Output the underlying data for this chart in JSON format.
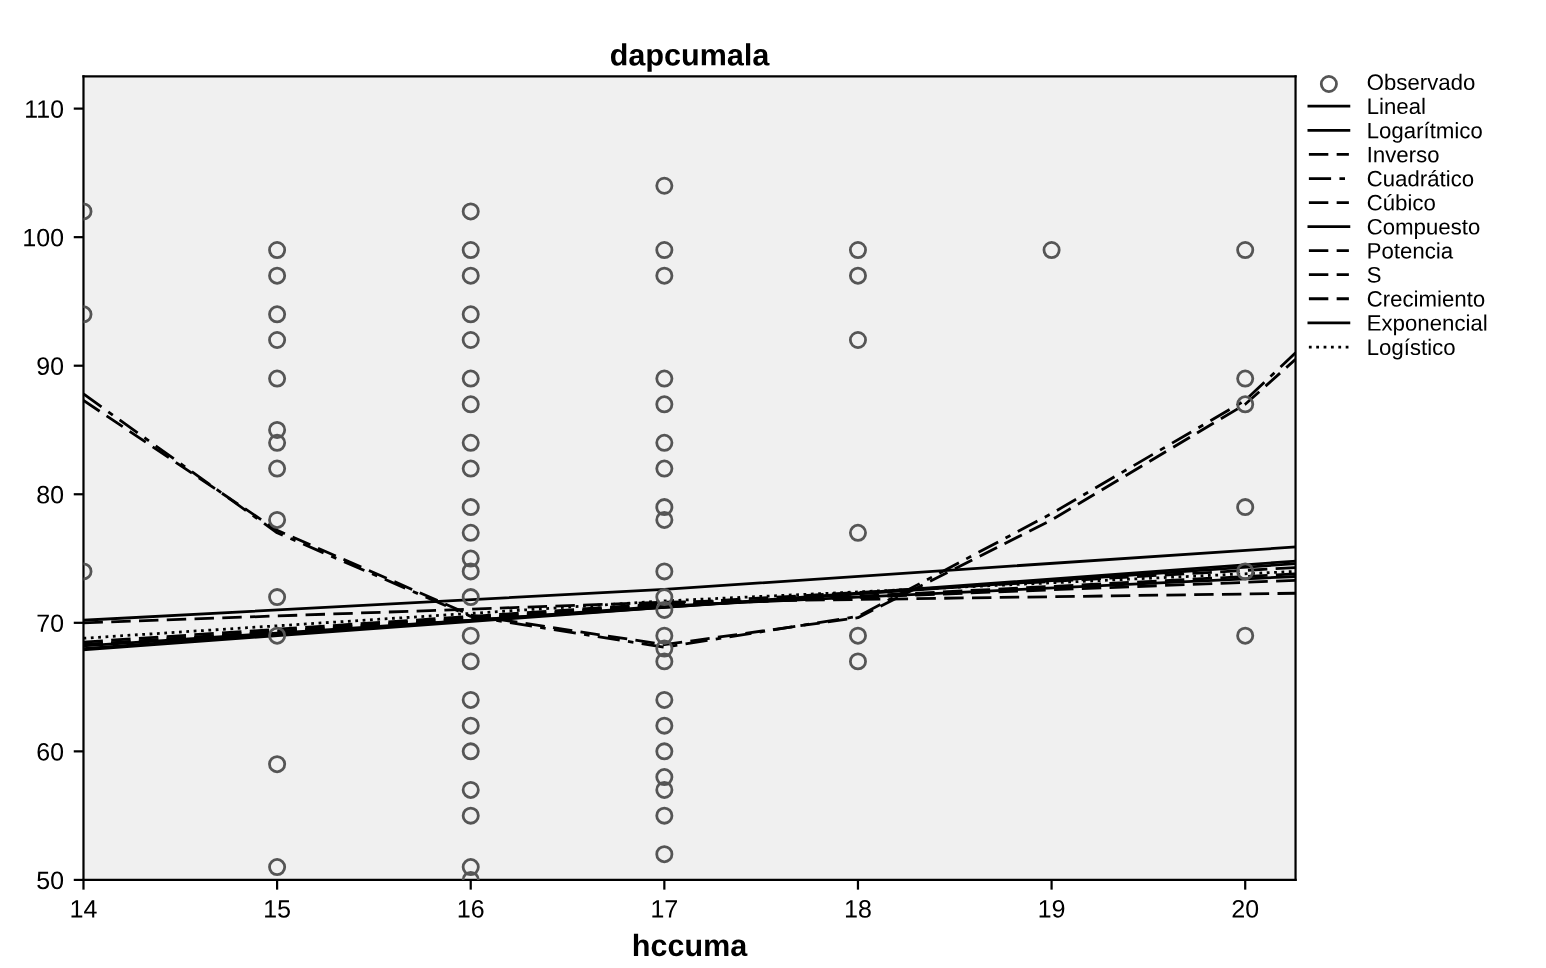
{
  "chart_data": {
    "type": "scatter",
    "title": "dapcumala",
    "xlabel": "hccuma",
    "xlim": [
      14,
      20.26
    ],
    "ylim": [
      50,
      112.5
    ],
    "xticks": [
      14,
      15,
      16,
      17,
      18,
      19,
      20
    ],
    "yticks": [
      50,
      60,
      70,
      80,
      90,
      100,
      110
    ],
    "grid": false,
    "legend": "right",
    "series": [
      {
        "name": "Observado",
        "color": "#555555",
        "marker": "circle",
        "x": [
          14,
          14,
          14,
          15,
          15,
          15,
          15,
          15,
          15,
          15,
          15,
          15,
          15,
          15,
          15,
          15,
          16,
          16,
          16,
          16,
          16,
          16,
          16,
          16,
          16,
          16,
          16,
          16,
          16,
          16,
          16,
          16,
          16,
          16,
          16,
          16,
          16,
          16,
          16,
          17,
          17,
          17,
          17,
          17,
          17,
          17,
          17,
          17,
          17,
          17,
          17,
          17,
          17,
          17,
          17,
          17,
          17,
          17,
          17,
          17,
          17,
          18,
          18,
          18,
          18,
          18,
          18,
          19,
          20,
          20,
          20,
          20,
          20,
          20
        ],
        "values": [
          102,
          94,
          74,
          99,
          97,
          94,
          92,
          89,
          85,
          84,
          82,
          78,
          72,
          69,
          59,
          51,
          102,
          99,
          97,
          94,
          92,
          89,
          87,
          84,
          82,
          79,
          77,
          75,
          74,
          72,
          69,
          67,
          64,
          62,
          60,
          57,
          55,
          51,
          50,
          104,
          99,
          97,
          89,
          87,
          84,
          82,
          79,
          78,
          74,
          72,
          71,
          69,
          68,
          67,
          64,
          62,
          60,
          58,
          57,
          55,
          52,
          99,
          97,
          92,
          77,
          69,
          67,
          99,
          99,
          89,
          87,
          79,
          74,
          69
        ]
      },
      {
        "name": "Lineal",
        "type": "line",
        "color": "#000000",
        "line_style": "solid",
        "x": [
          14,
          17,
          20.26
        ],
        "values": [
          67.9,
          71.2,
          74.6
        ]
      },
      {
        "name": "Logarítmico",
        "type": "line",
        "color": "#000000",
        "line_style": "solid",
        "x": [
          14,
          17,
          20.26
        ],
        "values": [
          68,
          71.3,
          73.6
        ]
      },
      {
        "name": "Inverso",
        "type": "line",
        "color": "#000000",
        "line_style": "dashed",
        "x": [
          14,
          17,
          20.26
        ],
        "values": [
          68.3,
          71.4,
          73.3
        ]
      },
      {
        "name": "Cuadrático",
        "type": "line",
        "color": "#000000",
        "line_style": "dashdot",
        "x": [
          14,
          15,
          16,
          17,
          18,
          19,
          20,
          20.26
        ],
        "values": [
          87.8,
          77,
          70.5,
          68.1,
          70.5,
          78.5,
          87.3,
          91
        ]
      },
      {
        "name": "Cúbico",
        "type": "line",
        "color": "#000000",
        "line_style": "dashed",
        "x": [
          14,
          15,
          16,
          17,
          18,
          19,
          20,
          20.26
        ],
        "values": [
          87.3,
          77.2,
          70.6,
          68.3,
          70.4,
          78,
          87,
          90.5
        ]
      },
      {
        "name": "Compuesto",
        "type": "line",
        "color": "#000000",
        "line_style": "solid",
        "x": [
          14,
          17,
          20.26
        ],
        "values": [
          68.2,
          71.2,
          74.8
        ]
      },
      {
        "name": "Potencia",
        "type": "line",
        "color": "#000000",
        "line_style": "dashed",
        "x": [
          14,
          17,
          20.26
        ],
        "values": [
          68.3,
          71.3,
          73.8
        ]
      },
      {
        "name": "S",
        "type": "line",
        "color": "#000000",
        "line_style": "dashed",
        "x": [
          14,
          17,
          20.26
        ],
        "values": [
          70,
          71.6,
          72.3
        ]
      },
      {
        "name": "Crecimiento",
        "type": "line",
        "color": "#000000",
        "line_style": "dashed",
        "x": [
          14,
          17,
          20.26
        ],
        "values": [
          68.5,
          71.5,
          74.3
        ]
      },
      {
        "name": "Exponencial",
        "type": "line",
        "color": "#000000",
        "line_style": "solid",
        "x": [
          14,
          17,
          20.26
        ],
        "values": [
          70.2,
          72.6,
          75.9
        ]
      },
      {
        "name": "Logístico",
        "type": "line",
        "color": "#000000",
        "line_style": "dotted",
        "x": [
          14,
          17,
          20.26
        ],
        "values": [
          68.8,
          71.7,
          74
        ]
      }
    ]
  }
}
